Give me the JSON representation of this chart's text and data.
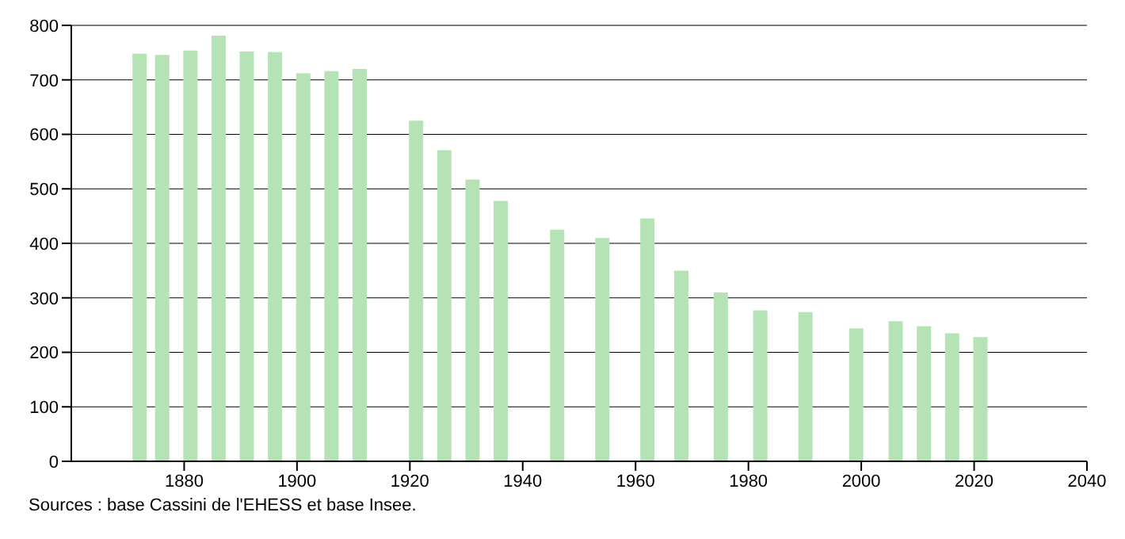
{
  "chart_data": {
    "type": "bar",
    "x": [
      1872,
      1876,
      1881,
      1886,
      1891,
      1896,
      1901,
      1906,
      1911,
      1921,
      1926,
      1931,
      1936,
      1946,
      1954,
      1962,
      1968,
      1975,
      1982,
      1990,
      1999,
      2006,
      2011,
      2016,
      2021
    ],
    "values": [
      748,
      746,
      754,
      781,
      752,
      751,
      712,
      716,
      720,
      625,
      571,
      517,
      478,
      425,
      410,
      446,
      350,
      310,
      277,
      274,
      244,
      257,
      248,
      235,
      228
    ],
    "color": "#b5e3b5",
    "xlim": [
      1860,
      2040
    ],
    "xticks": [
      1880,
      1900,
      1920,
      1940,
      1960,
      1980,
      2000,
      2020,
      2040
    ],
    "ylim": [
      0,
      800
    ],
    "yticks": [
      0,
      100,
      200,
      300,
      400,
      500,
      600,
      700,
      800
    ],
    "grid": "y",
    "annotations": [
      "Sources : base Cassini de l'EHESS et base Insee."
    ]
  }
}
